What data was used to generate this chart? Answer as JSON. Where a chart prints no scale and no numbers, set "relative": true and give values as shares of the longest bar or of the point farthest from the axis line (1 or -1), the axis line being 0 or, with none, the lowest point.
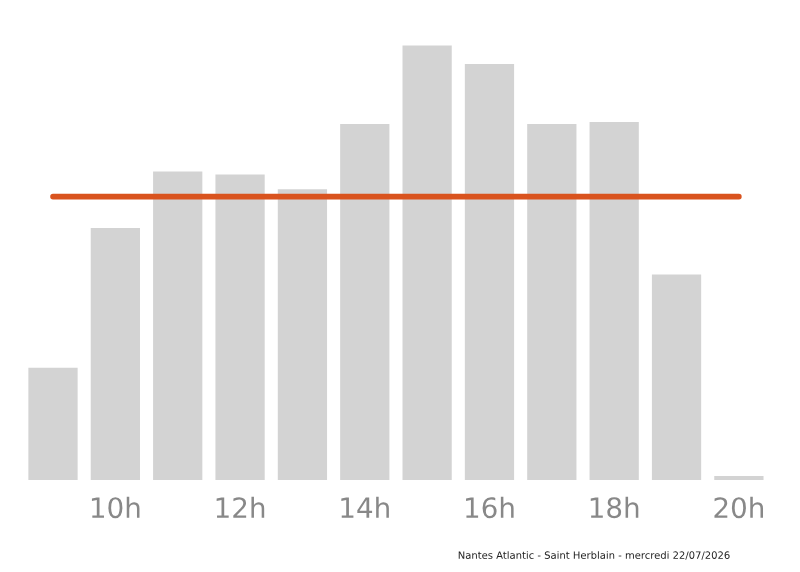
{
  "chart_data": {
    "type": "bar",
    "relative": true,
    "categories": [
      null,
      "10h",
      null,
      "12h",
      null,
      "14h",
      null,
      "16h",
      null,
      "18h",
      null,
      "20h"
    ],
    "values": [
      0.258,
      0.58,
      0.71,
      0.703,
      0.669,
      0.819,
      1,
      0.957,
      0.819,
      0.824,
      0.473,
      0.009
    ],
    "color": "#d3d3d3",
    "ref_lines": [
      {
        "axis": "y",
        "value": 0.652,
        "color": "#d9531e"
      }
    ],
    "annotations": [
      "Nantes Atlantic - Saint Herblain - mercredi 22/07/2026"
    ],
    "grid": false,
    "legend": false
  }
}
